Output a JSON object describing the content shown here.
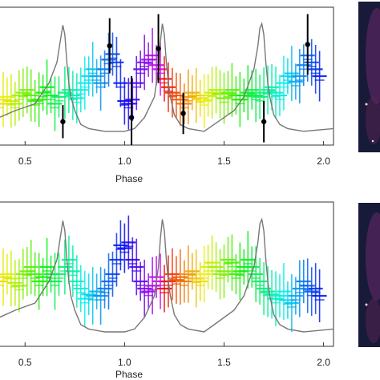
{
  "chart_data": [
    {
      "type": "scatter",
      "panel": "top",
      "xlabel": "Phase",
      "ylabel": "",
      "xlim": [
        0.37,
        2.05
      ],
      "ylim": [
        0,
        1
      ],
      "xticks": [
        "0.5",
        "1.0",
        "1.5",
        "2.0"
      ],
      "xtick_values": [
        0.5,
        1.0,
        1.5,
        2.0
      ],
      "grid": false,
      "colormap": "rainbow (cyclic in phase)",
      "light_curve": {
        "color": "#777777",
        "x": [
          0.37,
          0.45,
          0.55,
          0.62,
          0.66,
          0.68,
          0.69,
          0.7,
          0.71,
          0.72,
          0.73,
          0.75,
          0.78,
          0.82,
          0.9,
          1.0,
          1.05,
          1.1,
          1.15,
          1.17,
          1.18,
          1.19,
          1.2,
          1.21,
          1.22,
          1.23,
          1.25,
          1.28,
          1.32,
          1.4,
          1.5,
          1.55,
          1.6,
          1.65,
          1.67,
          1.68,
          1.69,
          1.7,
          1.71,
          1.72,
          1.73,
          1.75,
          1.78,
          1.82,
          1.9,
          2.05
        ],
        "y": [
          0.2,
          0.25,
          0.3,
          0.45,
          0.6,
          0.78,
          0.87,
          0.8,
          0.6,
          0.45,
          0.35,
          0.25,
          0.15,
          0.12,
          0.1,
          0.1,
          0.12,
          0.2,
          0.35,
          0.55,
          0.75,
          0.88,
          0.8,
          0.6,
          0.45,
          0.35,
          0.22,
          0.15,
          0.12,
          0.1,
          0.2,
          0.25,
          0.35,
          0.55,
          0.72,
          0.85,
          0.88,
          0.8,
          0.6,
          0.45,
          0.35,
          0.22,
          0.15,
          0.12,
          0.1,
          0.12
        ]
      },
      "highlighted_points": {
        "color": "#000000",
        "x": [
          0.69,
          0.925,
          1.035,
          1.17,
          1.295,
          1.7,
          1.92
        ],
        "y": [
          0.17,
          0.72,
          0.2,
          0.7,
          0.23,
          0.17,
          0.73
        ],
        "yerr": [
          0.12,
          0.2,
          0.3,
          0.25,
          0.15,
          0.15,
          0.22
        ]
      },
      "data_points": {
        "x": [
          0.37,
          0.39,
          0.41,
          0.43,
          0.45,
          0.47,
          0.49,
          0.51,
          0.53,
          0.55,
          0.57,
          0.59,
          0.61,
          0.63,
          0.65,
          0.67,
          0.7,
          0.72,
          0.74,
          0.76,
          0.78,
          0.8,
          0.82,
          0.84,
          0.86,
          0.88,
          0.9,
          0.92,
          0.94,
          0.96,
          0.98,
          1.0,
          1.02,
          1.04,
          1.06,
          1.08,
          1.1,
          1.12,
          1.14,
          1.16,
          1.18,
          1.2,
          1.22,
          1.24,
          1.26,
          1.28,
          1.3,
          1.32,
          1.34,
          1.36,
          1.38,
          1.4,
          1.42,
          1.44,
          1.46,
          1.48,
          1.5,
          1.52,
          1.54,
          1.56,
          1.58,
          1.6,
          1.62,
          1.64,
          1.66,
          1.68,
          1.7,
          1.72,
          1.74,
          1.76,
          1.78,
          1.8,
          1.82,
          1.84,
          1.86,
          1.88,
          1.9,
          1.92,
          1.94,
          1.96,
          1.98
        ],
        "y": [
          0.3,
          0.33,
          0.35,
          0.32,
          0.3,
          0.36,
          0.38,
          0.4,
          0.36,
          0.32,
          0.33,
          0.38,
          0.42,
          0.36,
          0.3,
          0.35,
          0.38,
          0.4,
          0.36,
          0.34,
          0.4,
          0.45,
          0.5,
          0.55,
          0.5,
          0.45,
          0.55,
          0.62,
          0.66,
          0.6,
          0.45,
          0.32,
          0.3,
          0.33,
          0.45,
          0.55,
          0.6,
          0.62,
          0.65,
          0.58,
          0.55,
          0.48,
          0.42,
          0.38,
          0.36,
          0.33,
          0.3,
          0.35,
          0.38,
          0.36,
          0.34,
          0.32,
          0.36,
          0.38,
          0.4,
          0.37,
          0.34,
          0.38,
          0.4,
          0.36,
          0.33,
          0.36,
          0.38,
          0.4,
          0.36,
          0.35,
          0.38,
          0.4,
          0.42,
          0.38,
          0.36,
          0.45,
          0.5,
          0.52,
          0.46,
          0.5,
          0.58,
          0.65,
          0.6,
          0.55,
          0.5
        ]
      }
    },
    {
      "type": "scatter",
      "panel": "bottom",
      "xlabel": "Phase",
      "ylabel": "",
      "xlim": [
        0.37,
        2.05
      ],
      "ylim": [
        0,
        1
      ],
      "xticks": [
        "0.5",
        "1.0",
        "1.5",
        "2.0"
      ],
      "xtick_values": [
        0.5,
        1.0,
        1.5,
        2.0
      ],
      "grid": false,
      "colormap": "rainbow (cyclic in phase)",
      "light_curve": {
        "color": "#777777",
        "x": [
          0.37,
          0.45,
          0.55,
          0.62,
          0.66,
          0.68,
          0.69,
          0.7,
          0.71,
          0.72,
          0.73,
          0.75,
          0.78,
          0.82,
          0.9,
          1.0,
          1.05,
          1.1,
          1.15,
          1.17,
          1.18,
          1.19,
          1.2,
          1.21,
          1.22,
          1.23,
          1.25,
          1.28,
          1.32,
          1.4,
          1.5,
          1.55,
          1.6,
          1.65,
          1.67,
          1.68,
          1.69,
          1.7,
          1.71,
          1.72,
          1.73,
          1.75,
          1.78,
          1.82,
          1.9,
          2.05
        ],
        "y": [
          0.2,
          0.25,
          0.3,
          0.45,
          0.6,
          0.78,
          0.87,
          0.8,
          0.6,
          0.45,
          0.35,
          0.25,
          0.15,
          0.12,
          0.1,
          0.1,
          0.12,
          0.2,
          0.35,
          0.55,
          0.75,
          0.88,
          0.8,
          0.6,
          0.45,
          0.35,
          0.22,
          0.15,
          0.12,
          0.1,
          0.2,
          0.25,
          0.35,
          0.55,
          0.72,
          0.85,
          0.88,
          0.8,
          0.6,
          0.45,
          0.35,
          0.22,
          0.15,
          0.12,
          0.1,
          0.12
        ]
      },
      "data_points": {
        "x": [
          0.37,
          0.39,
          0.41,
          0.43,
          0.45,
          0.47,
          0.49,
          0.51,
          0.53,
          0.55,
          0.57,
          0.59,
          0.61,
          0.63,
          0.65,
          0.67,
          0.7,
          0.72,
          0.74,
          0.76,
          0.78,
          0.8,
          0.82,
          0.84,
          0.86,
          0.88,
          0.9,
          0.92,
          0.94,
          0.96,
          0.98,
          1.0,
          1.02,
          1.04,
          1.06,
          1.08,
          1.1,
          1.12,
          1.14,
          1.16,
          1.18,
          1.2,
          1.22,
          1.24,
          1.26,
          1.28,
          1.3,
          1.32,
          1.34,
          1.36,
          1.38,
          1.4,
          1.42,
          1.44,
          1.46,
          1.48,
          1.5,
          1.52,
          1.54,
          1.56,
          1.58,
          1.6,
          1.62,
          1.64,
          1.66,
          1.68,
          1.7,
          1.72,
          1.74,
          1.76,
          1.78,
          1.8,
          1.82,
          1.84,
          1.86,
          1.88,
          1.9,
          1.92,
          1.94,
          1.96,
          1.98
        ],
        "y": [
          0.45,
          0.48,
          0.5,
          0.47,
          0.44,
          0.42,
          0.5,
          0.52,
          0.55,
          0.5,
          0.45,
          0.48,
          0.55,
          0.5,
          0.45,
          0.5,
          0.55,
          0.6,
          0.52,
          0.45,
          0.4,
          0.33,
          0.36,
          0.35,
          0.38,
          0.35,
          0.4,
          0.45,
          0.5,
          0.6,
          0.7,
          0.68,
          0.72,
          0.6,
          0.55,
          0.45,
          0.4,
          0.38,
          0.42,
          0.48,
          0.45,
          0.4,
          0.45,
          0.5,
          0.46,
          0.48,
          0.45,
          0.5,
          0.52,
          0.47,
          0.45,
          0.5,
          0.55,
          0.58,
          0.55,
          0.5,
          0.52,
          0.6,
          0.58,
          0.5,
          0.52,
          0.55,
          0.6,
          0.55,
          0.5,
          0.45,
          0.4,
          0.38,
          0.36,
          0.33,
          0.35,
          0.38,
          0.32,
          0.3,
          0.35,
          0.4,
          0.45,
          0.42,
          0.38,
          0.4,
          0.35
        ]
      }
    }
  ],
  "insets": {
    "top_color": "#1a1a3a",
    "bottom_color": "#1a1a3a"
  }
}
